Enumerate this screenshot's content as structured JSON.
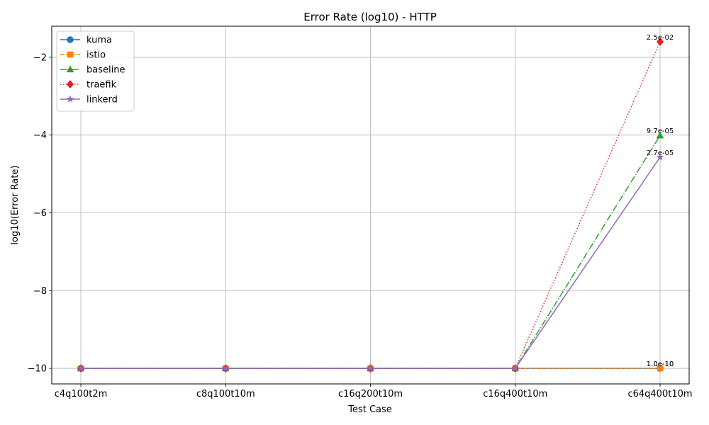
{
  "chart_data": {
    "type": "line",
    "title": "Error Rate (log10) - HTTP",
    "xlabel": "Test Case",
    "ylabel": "log10(Error Rate)",
    "categories": [
      "c4q100t2m",
      "c8q100t10m",
      "c16q200t10m",
      "c16q400t10m",
      "c64q400t10m"
    ],
    "ylim": [
      -10.4,
      -1.2
    ],
    "yticks": [
      -10,
      -8,
      -6,
      -4,
      -2
    ],
    "ytick_labels": [
      "−10",
      "−8",
      "−6",
      "−4",
      "−2"
    ],
    "grid": true,
    "legend_position": "top-left",
    "series": [
      {
        "name": "kuma",
        "values": [
          -10,
          -10,
          -10,
          -10,
          -10
        ],
        "color": "#1f77b4",
        "marker": "circle",
        "dash": "solid",
        "last_label": "1.0e-10"
      },
      {
        "name": "istio",
        "values": [
          -10,
          -10,
          -10,
          -10,
          -10
        ],
        "color": "#ff7f0e",
        "marker": "square",
        "dash": "dashed",
        "last_label": "1.0e-10"
      },
      {
        "name": "baseline",
        "values": [
          -10,
          -10,
          -10,
          -10,
          -4.01
        ],
        "color": "#2ca02c",
        "marker": "triangle",
        "dash": "dashdot",
        "last_label": "9.7e-05"
      },
      {
        "name": "traefik",
        "values": [
          -10,
          -10,
          -10,
          -10,
          -1.6
        ],
        "color": "#d62728",
        "marker": "diamond",
        "dash": "dotted",
        "last_label": "2.5e-02"
      },
      {
        "name": "linkerd",
        "values": [
          -10,
          -10,
          -10,
          -10,
          -4.57
        ],
        "color": "#9467bd",
        "marker": "star",
        "dash": "solid",
        "last_label": "2.7e-05"
      }
    ]
  }
}
